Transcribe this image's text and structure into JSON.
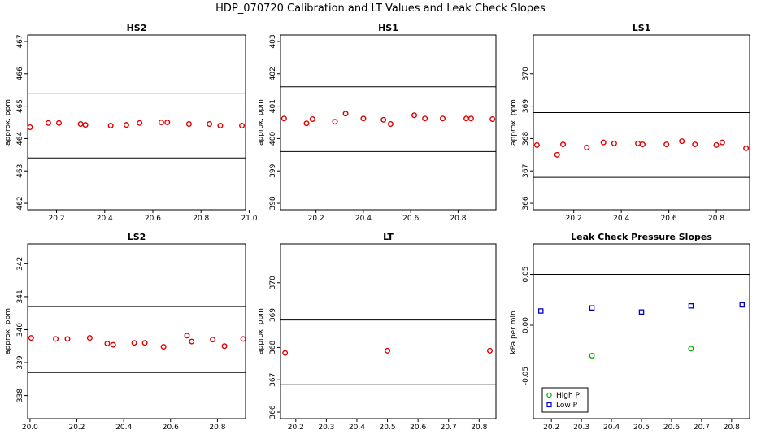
{
  "figure": {
    "title": "HDP_070720  Calibration and LT Values and Leak Check Slopes"
  },
  "chart_data": [
    {
      "id": "hs2",
      "type": "scatter",
      "title": "HS2",
      "xlabel": "",
      "ylabel": "approx. ppm",
      "xlim": [
        20.08,
        20.985
      ],
      "ylim": [
        461.8,
        467.2
      ],
      "xticks": [
        20.2,
        20.4,
        20.6,
        20.8,
        21.0
      ],
      "xticklabels": [
        "20.2",
        "20.4",
        "20.6",
        "20.8",
        "21.0"
      ],
      "yticks": [
        462,
        463,
        464,
        465,
        466,
        467
      ],
      "yticklabels": [
        "462",
        "463",
        "464",
        "465",
        "466",
        "467"
      ],
      "hlines": [
        463.4,
        465.4
      ],
      "point_color": "#e00000",
      "series": [
        {
          "x": [
            20.09,
            20.166,
            20.21,
            20.3,
            20.32,
            20.425,
            20.49,
            20.545,
            20.635,
            20.66,
            20.75,
            20.835,
            20.88,
            20.97
          ],
          "y": [
            464.35,
            464.48,
            464.48,
            464.45,
            464.42,
            464.4,
            464.42,
            464.48,
            464.5,
            464.5,
            464.45,
            464.45,
            464.4,
            464.4
          ]
        }
      ]
    },
    {
      "id": "hs1",
      "type": "scatter",
      "title": "HS1",
      "xlabel": "",
      "ylabel": "approx. ppm",
      "xlim": [
        20.05,
        20.96
      ],
      "ylim": [
        397.8,
        403.2
      ],
      "xticks": [
        20.2,
        20.4,
        20.6,
        20.8
      ],
      "xticklabels": [
        "20.2",
        "20.4",
        "20.6",
        "20.8"
      ],
      "yticks": [
        398,
        399,
        400,
        401,
        402,
        403
      ],
      "yticklabels": [
        "398",
        "399",
        "400",
        "401",
        "402",
        "403"
      ],
      "hlines": [
        399.6,
        401.6
      ],
      "point_color": "#e00000",
      "series": [
        {
          "x": [
            20.065,
            20.16,
            20.185,
            20.28,
            20.325,
            20.4,
            20.485,
            20.515,
            20.615,
            20.66,
            20.735,
            20.835,
            20.855,
            20.945
          ],
          "y": [
            400.62,
            400.47,
            400.6,
            400.52,
            400.77,
            400.62,
            400.58,
            400.45,
            400.72,
            400.62,
            400.62,
            400.62,
            400.62,
            400.6
          ]
        }
      ]
    },
    {
      "id": "ls1",
      "type": "scatter",
      "title": "LS1",
      "xlabel": "",
      "ylabel": "approx. ppm",
      "xlim": [
        20.03,
        20.94
      ],
      "ylim": [
        365.8,
        371.2
      ],
      "xticks": [
        20.2,
        20.4,
        20.6,
        20.8
      ],
      "xticklabels": [
        "20.2",
        "20.4",
        "20.6",
        "20.8"
      ],
      "yticks": [
        366,
        367,
        368,
        369,
        370
      ],
      "yticklabels": [
        "366",
        "367",
        "368",
        "369",
        "370"
      ],
      "hlines": [
        366.8,
        368.8
      ],
      "point_color": "#e00000",
      "series": [
        {
          "x": [
            20.045,
            20.13,
            20.155,
            20.255,
            20.325,
            20.37,
            20.47,
            20.49,
            20.59,
            20.655,
            20.71,
            20.8,
            20.825,
            20.925
          ],
          "y": [
            367.8,
            367.5,
            367.82,
            367.72,
            367.88,
            367.85,
            367.85,
            367.82,
            367.82,
            367.92,
            367.82,
            367.8,
            367.88,
            367.7
          ]
        }
      ]
    },
    {
      "id": "ls2",
      "type": "scatter",
      "title": "LS2",
      "xlabel": "",
      "ylabel": "approx. ppm",
      "xlim": [
        19.99,
        20.92
      ],
      "ylim": [
        337.3,
        342.6
      ],
      "xticks": [
        20.0,
        20.2,
        20.4,
        20.6,
        20.8
      ],
      "xticklabels": [
        "20.0",
        "20.2",
        "20.4",
        "20.6",
        "20.8"
      ],
      "yticks": [
        338,
        339,
        340,
        341,
        342
      ],
      "yticklabels": [
        "338",
        "339",
        "340",
        "341",
        "342"
      ],
      "hlines": [
        338.7,
        340.7
      ],
      "point_color": "#e00000",
      "series": [
        {
          "x": [
            20.005,
            20.11,
            20.16,
            20.255,
            20.33,
            20.355,
            20.445,
            20.49,
            20.57,
            20.67,
            20.69,
            20.78,
            20.83,
            20.91
          ],
          "y": [
            339.75,
            339.72,
            339.72,
            339.75,
            339.58,
            339.54,
            339.6,
            339.6,
            339.48,
            339.82,
            339.64,
            339.7,
            339.5,
            339.72
          ]
        }
      ]
    },
    {
      "id": "lt",
      "type": "scatter",
      "title": "LT",
      "xlabel": "",
      "ylabel": "approx. ppm",
      "xlim": [
        20.15,
        20.855
      ],
      "ylim": [
        365.8,
        371.2
      ],
      "xticks": [
        20.2,
        20.3,
        20.4,
        20.5,
        20.6,
        20.7,
        20.8
      ],
      "xticklabels": [
        "20.2",
        "20.3",
        "20.4",
        "20.5",
        "20.6",
        "20.7",
        "20.8"
      ],
      "yticks": [
        366,
        367,
        368,
        369,
        370
      ],
      "yticklabels": [
        "366",
        "367",
        "368",
        "369",
        "370"
      ],
      "hlines": [
        366.85,
        368.85
      ],
      "point_color": "#e00000",
      "series": [
        {
          "x": [
            20.165,
            20.5,
            20.835
          ],
          "y": [
            367.83,
            367.9,
            367.9
          ]
        }
      ]
    },
    {
      "id": "leak",
      "type": "scatter",
      "title": "Leak Check Pressure Slopes",
      "xlabel": "",
      "ylabel": "kPa per min.",
      "xlim": [
        20.14,
        20.86
      ],
      "ylim": [
        -0.092,
        0.08
      ],
      "xticks": [
        20.2,
        20.3,
        20.4,
        20.5,
        20.6,
        20.7,
        20.8
      ],
      "xticklabels": [
        "20.2",
        "20.3",
        "20.4",
        "20.5",
        "20.6",
        "20.7",
        "20.8"
      ],
      "yticks": [
        -0.05,
        0.0,
        0.05
      ],
      "yticklabels": [
        "-0.05",
        "0.00",
        "0.05"
      ],
      "hlines": [
        -0.05,
        0.05
      ],
      "legend": {
        "position": "bottom-left"
      },
      "series": [
        {
          "name": "High P",
          "color": "#00b000",
          "x": [
            20.335,
            20.665
          ],
          "y": [
            -0.03,
            -0.023
          ]
        },
        {
          "name": "Low P",
          "color": "#0000cc",
          "x": [
            20.165,
            20.335,
            20.5,
            20.665,
            20.835
          ],
          "y": [
            0.014,
            0.017,
            0.013,
            0.019,
            0.02
          ]
        }
      ]
    }
  ]
}
